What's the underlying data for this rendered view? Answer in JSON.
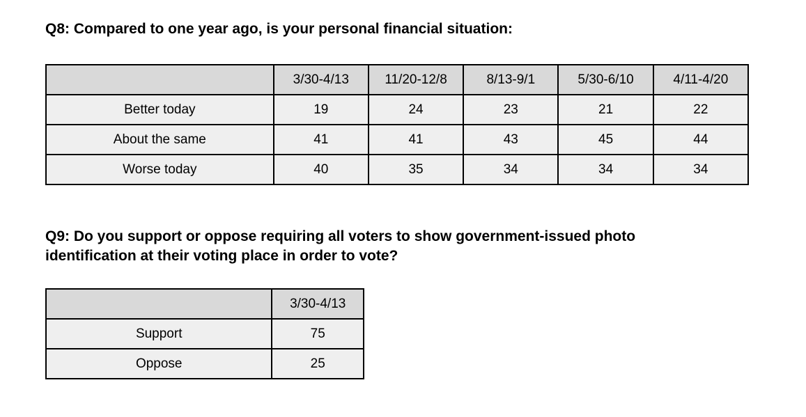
{
  "q8": {
    "title": "Q8: Compared to one year ago, is your personal financial situation:",
    "table": {
      "corner": "",
      "columns": [
        "3/30-4/13",
        "11/20-12/8",
        "8/13-9/1",
        "5/30-6/10",
        "4/11-4/20"
      ],
      "rows": [
        {
          "label": "Better today",
          "values": [
            "19",
            "24",
            "23",
            "21",
            "22"
          ]
        },
        {
          "label": "About the same",
          "values": [
            "41",
            "41",
            "43",
            "45",
            "44"
          ]
        },
        {
          "label": "Worse today",
          "values": [
            "40",
            "35",
            "34",
            "34",
            "34"
          ]
        }
      ]
    }
  },
  "q9": {
    "title_lines": [
      "Q9: Do you support or oppose requiring all voters to show government-issued photo",
      "identification at their voting place in order to vote?"
    ],
    "table": {
      "corner": "",
      "columns": [
        "3/30-4/13"
      ],
      "rows": [
        {
          "label": "Support",
          "values": [
            "75"
          ]
        },
        {
          "label": "Oppose",
          "values": [
            "25"
          ]
        }
      ]
    }
  },
  "colors": {
    "table_header_bg": "#d9d9d9",
    "table_row_bg": "#efefef",
    "table_border": "#000000",
    "text": "#000000",
    "page_bg": "#ffffff"
  }
}
